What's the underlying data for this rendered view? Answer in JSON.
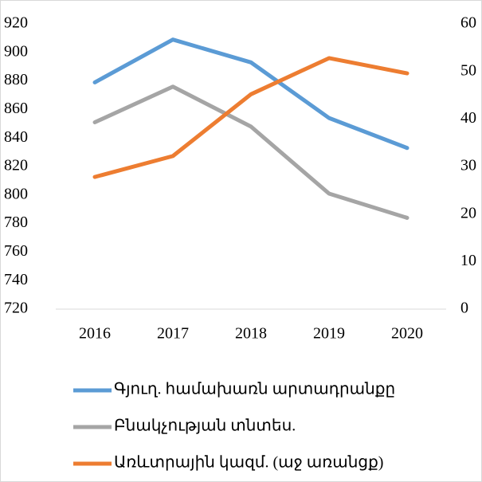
{
  "chart_data": {
    "type": "line",
    "categories": [
      "2016",
      "2017",
      "2018",
      "2019",
      "2020"
    ],
    "series": [
      {
        "name": "Գյուղ. համախառն արտադրանքը",
        "color": "#5b9bd5",
        "values": [
          879,
          909,
          893,
          854,
          833
        ]
      },
      {
        "name": "Բնակչության տնտես.",
        "color": "#a5a5a5",
        "values": [
          851,
          876,
          848,
          801,
          784
        ]
      },
      {
        "name": "Առևտրային կազմ. (աջ առանցք)",
        "color": "#ed7d31",
        "axis": "y2",
        "values": [
          27.8,
          32.2,
          45.2,
          52.8,
          49.6
        ]
      }
    ],
    "ylim": [
      720,
      920
    ],
    "yticks": [
      720,
      740,
      760,
      780,
      800,
      820,
      840,
      860,
      880,
      900,
      920
    ],
    "y2lim": [
      0,
      60
    ],
    "y2ticks": [
      0,
      10,
      20,
      30,
      40,
      50,
      60
    ],
    "legend": "bottom",
    "grid": false
  }
}
